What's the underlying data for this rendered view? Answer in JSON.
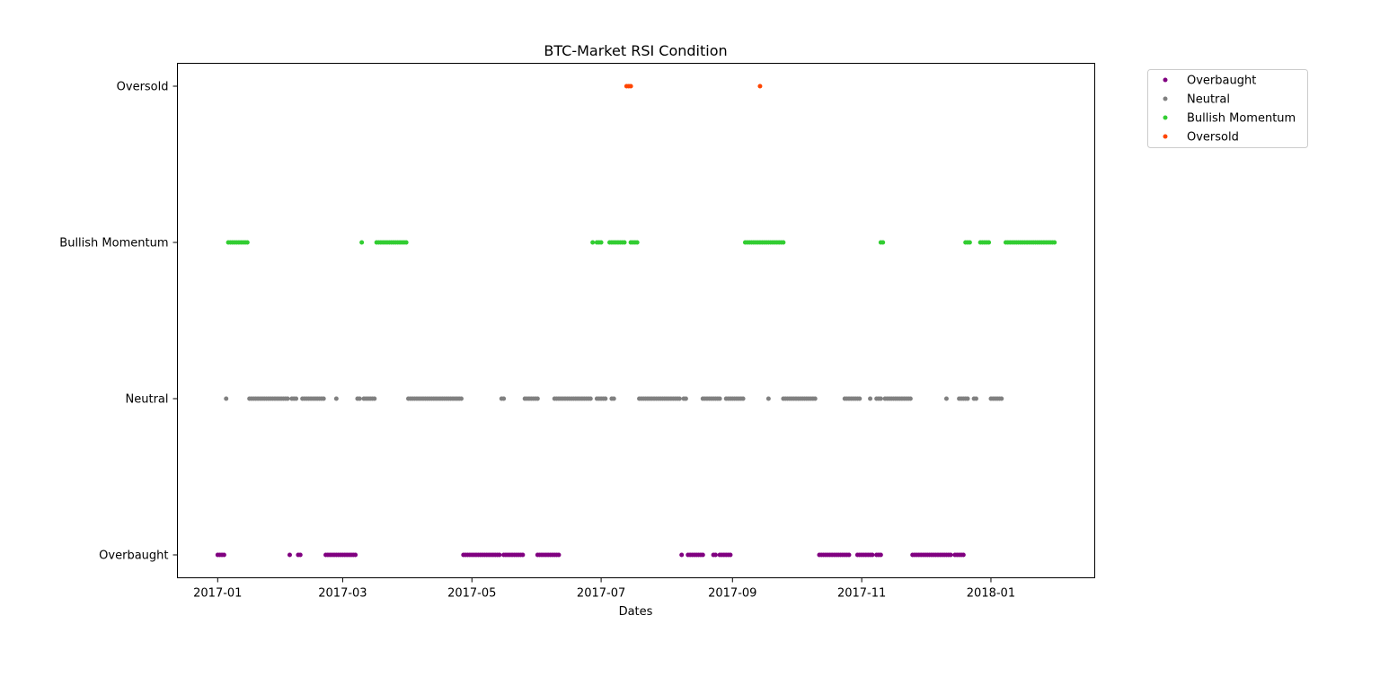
{
  "chart_data": {
    "type": "scatter",
    "title": "BTC-Market RSI Condition",
    "xlabel": "Dates",
    "ylabel": "",
    "x_type": "date",
    "xlim": [
      "2016-12-13",
      "2018-02-19"
    ],
    "x_ticks": [
      "2017-01-01",
      "2017-03-01",
      "2017-05-01",
      "2017-07-01",
      "2017-09-01",
      "2017-11-01",
      "2018-01-01"
    ],
    "x_tick_labels": [
      "2017-01",
      "2017-03",
      "2017-05",
      "2017-07",
      "2017-09",
      "2017-11",
      "2018-01"
    ],
    "categories": [
      "Overbaught",
      "Neutral",
      "Bullish Momentum",
      "Oversold"
    ],
    "grid": false,
    "legend": "upper right, outside plot area",
    "series": [
      {
        "name": "Overbaught",
        "category": "Overbaught",
        "color": "#800080",
        "ranges": [
          [
            "2017-01-01",
            "2017-01-04"
          ],
          [
            "2017-02-04",
            "2017-02-04"
          ],
          [
            "2017-02-08",
            "2017-02-09"
          ],
          [
            "2017-02-21",
            "2017-03-07"
          ],
          [
            "2017-04-27",
            "2017-05-14"
          ],
          [
            "2017-05-16",
            "2017-05-25"
          ],
          [
            "2017-06-01",
            "2017-06-11"
          ],
          [
            "2017-08-08",
            "2017-08-08"
          ],
          [
            "2017-08-11",
            "2017-08-18"
          ],
          [
            "2017-08-23",
            "2017-08-24"
          ],
          [
            "2017-08-26",
            "2017-08-31"
          ],
          [
            "2017-10-12",
            "2017-10-26"
          ],
          [
            "2017-10-30",
            "2017-11-06"
          ],
          [
            "2017-11-08",
            "2017-11-10"
          ],
          [
            "2017-11-25",
            "2017-12-13"
          ],
          [
            "2017-12-15",
            "2017-12-19"
          ]
        ]
      },
      {
        "name": "Neutral",
        "category": "Neutral",
        "color": "#808080",
        "ranges": [
          [
            "2017-01-05",
            "2017-01-05"
          ],
          [
            "2017-01-16",
            "2017-02-03"
          ],
          [
            "2017-02-05",
            "2017-02-07"
          ],
          [
            "2017-02-10",
            "2017-02-20"
          ],
          [
            "2017-02-26",
            "2017-02-26"
          ],
          [
            "2017-03-08",
            "2017-03-09"
          ],
          [
            "2017-03-11",
            "2017-03-16"
          ],
          [
            "2017-04-01",
            "2017-04-26"
          ],
          [
            "2017-05-15",
            "2017-05-16"
          ],
          [
            "2017-05-26",
            "2017-06-01"
          ],
          [
            "2017-06-09",
            "2017-06-26"
          ],
          [
            "2017-06-29",
            "2017-07-03"
          ],
          [
            "2017-07-06",
            "2017-07-07"
          ],
          [
            "2017-07-19",
            "2017-08-07"
          ],
          [
            "2017-08-09",
            "2017-08-10"
          ],
          [
            "2017-08-18",
            "2017-08-26"
          ],
          [
            "2017-08-29",
            "2017-09-06"
          ],
          [
            "2017-09-18",
            "2017-09-18"
          ],
          [
            "2017-09-25",
            "2017-10-10"
          ],
          [
            "2017-10-24",
            "2017-10-31"
          ],
          [
            "2017-11-05",
            "2017-11-05"
          ],
          [
            "2017-11-08",
            "2017-11-10"
          ],
          [
            "2017-11-12",
            "2017-11-24"
          ],
          [
            "2017-12-11",
            "2017-12-11"
          ],
          [
            "2017-12-17",
            "2017-12-21"
          ],
          [
            "2017-12-24",
            "2017-12-25"
          ],
          [
            "2018-01-01",
            "2018-01-06"
          ]
        ]
      },
      {
        "name": "Bullish Momentum",
        "category": "Bullish Momentum",
        "color": "#32cd32",
        "ranges": [
          [
            "2017-01-06",
            "2017-01-15"
          ],
          [
            "2017-03-10",
            "2017-03-10"
          ],
          [
            "2017-03-17",
            "2017-03-31"
          ],
          [
            "2017-06-27",
            "2017-06-27"
          ],
          [
            "2017-06-29",
            "2017-07-01"
          ],
          [
            "2017-07-05",
            "2017-07-12"
          ],
          [
            "2017-07-15",
            "2017-07-18"
          ],
          [
            "2017-09-07",
            "2017-09-25"
          ],
          [
            "2017-11-10",
            "2017-11-11"
          ],
          [
            "2017-12-20",
            "2017-12-22"
          ],
          [
            "2017-12-27",
            "2017-12-31"
          ],
          [
            "2018-01-08",
            "2018-01-31"
          ]
        ]
      },
      {
        "name": "Oversold",
        "category": "Oversold",
        "color": "#ff4500",
        "ranges": [
          [
            "2017-07-13",
            "2017-07-15"
          ],
          [
            "2017-09-14",
            "2017-09-14"
          ]
        ]
      }
    ]
  }
}
